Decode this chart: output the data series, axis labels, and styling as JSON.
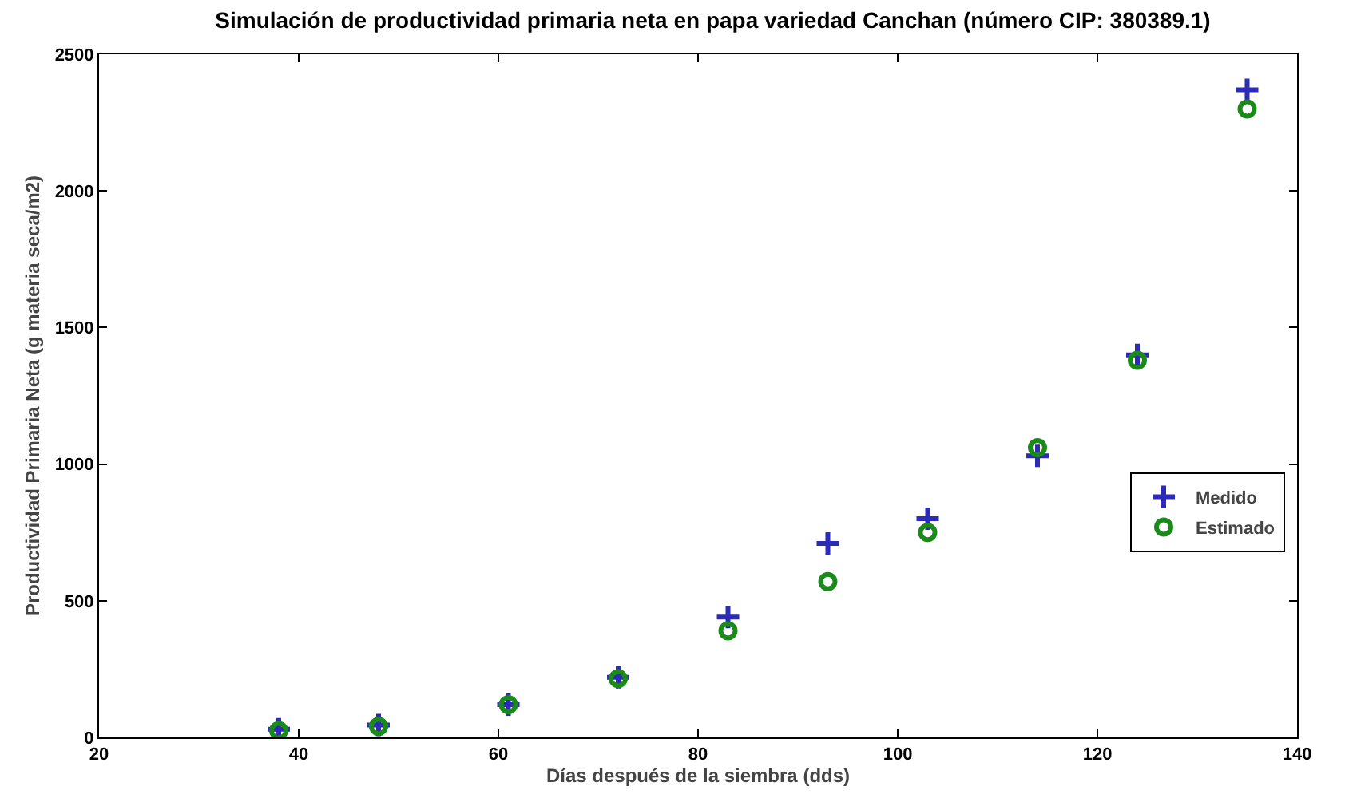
{
  "chart_data": {
    "type": "scatter",
    "title": "Simulación de productividad primaria neta en papa variedad Canchan (número CIP: 380389.1)",
    "xlabel": "Días después de la siembra (dds)",
    "ylabel": "Productividad Primaria Neta (g materia seca/m2)",
    "x": [
      38,
      48,
      61,
      72,
      83,
      93,
      103,
      114,
      124,
      135
    ],
    "series": [
      {
        "name": "Medido",
        "color": "#2b2bb8",
        "marker": "cross",
        "values": [
          30,
          45,
          120,
          220,
          440,
          710,
          800,
          1030,
          1400,
          2370
        ]
      },
      {
        "name": "Estimado",
        "color": "#1a8a1a",
        "marker": "circle",
        "values": [
          25,
          40,
          120,
          215,
          390,
          570,
          750,
          1060,
          1380,
          2300
        ]
      }
    ],
    "xlim": [
      20,
      140
    ],
    "xticks": [
      20,
      40,
      60,
      80,
      100,
      120,
      140
    ],
    "ylim": [
      0,
      2500
    ],
    "yticks": [
      0,
      500,
      1000,
      1500,
      2000,
      2500
    ],
    "grid": false,
    "legend": "right"
  }
}
